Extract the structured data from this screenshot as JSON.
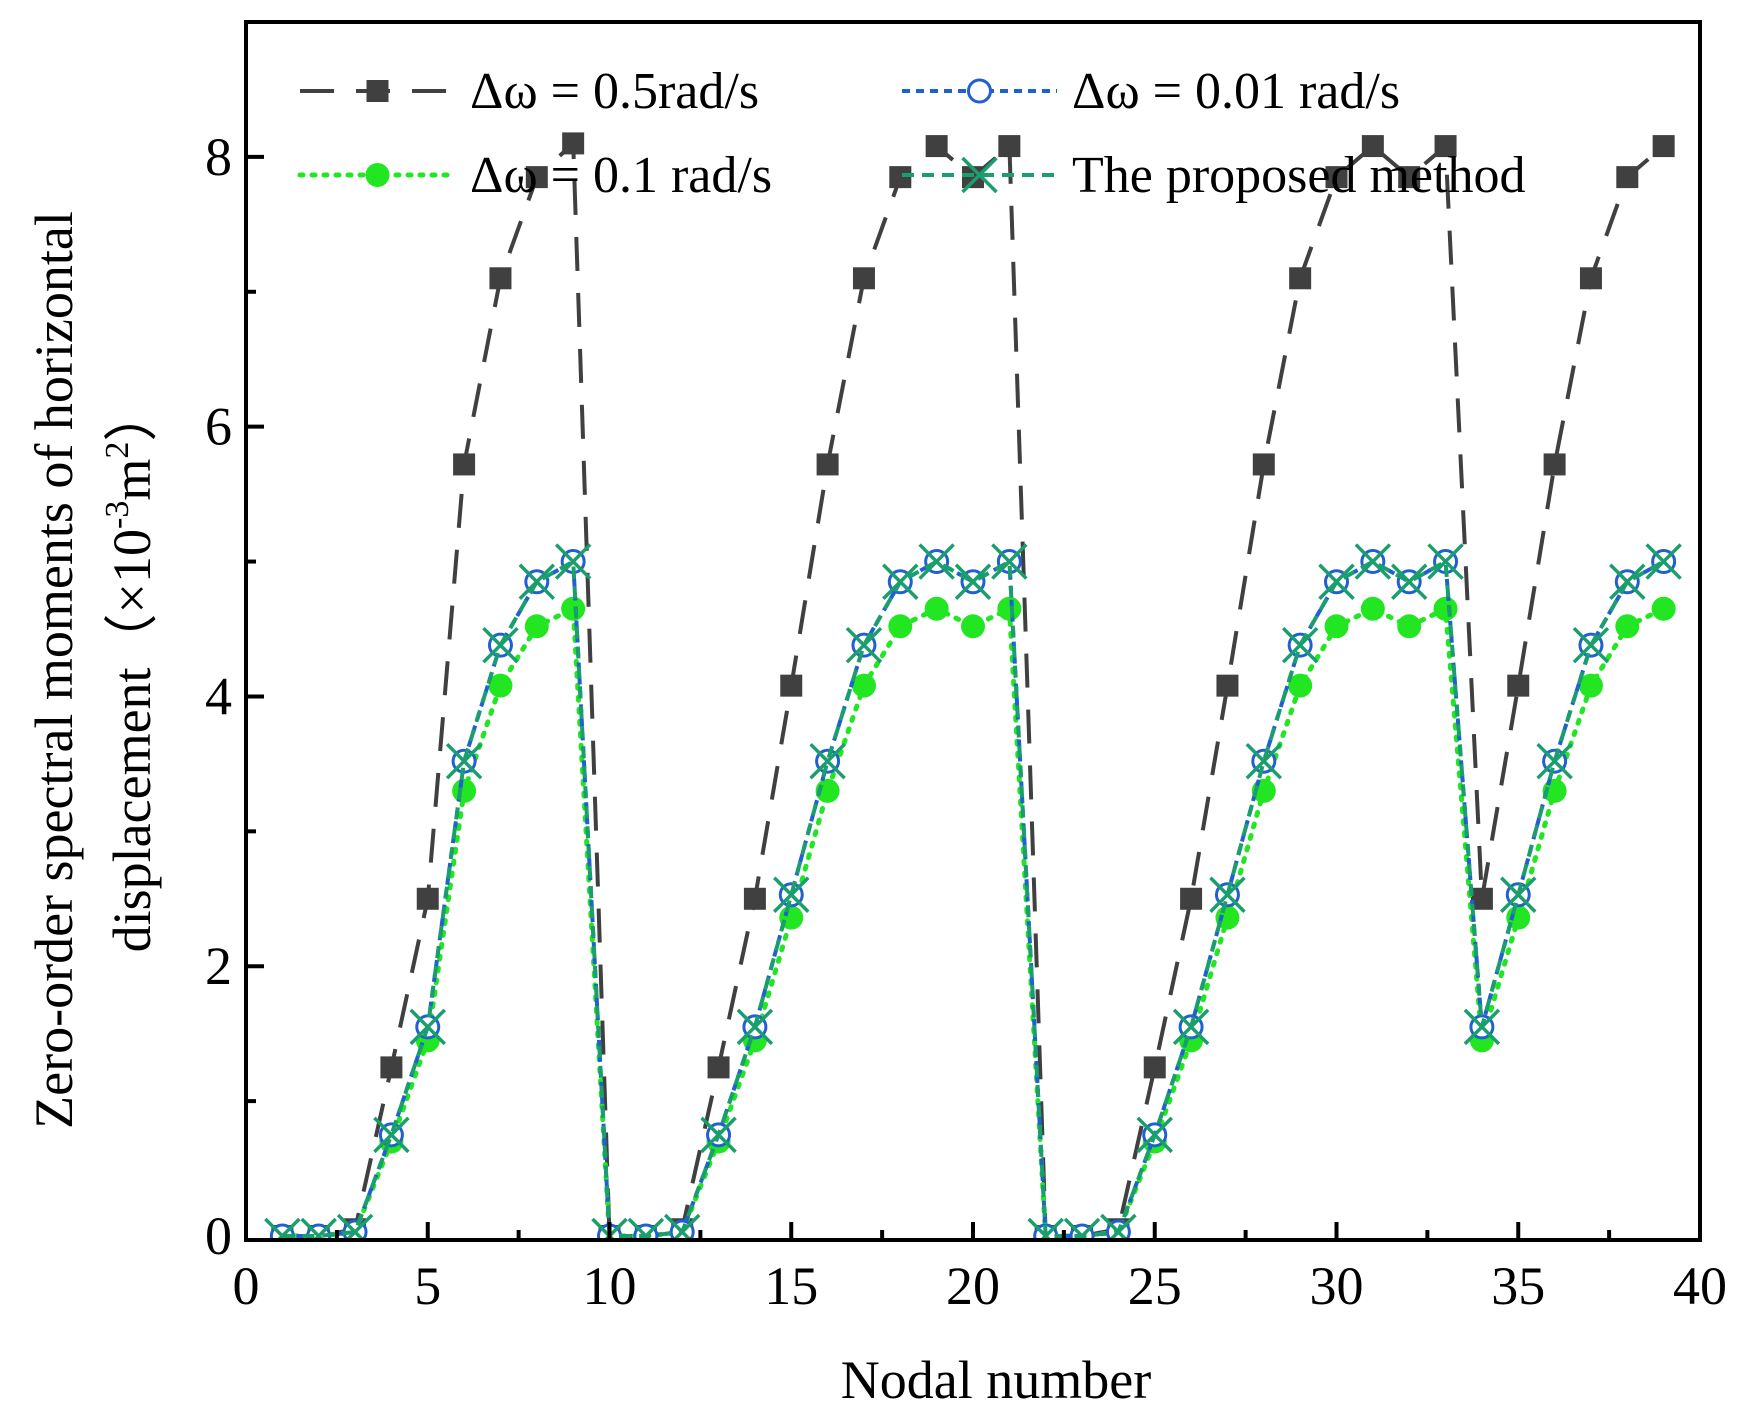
{
  "chart_data": {
    "type": "line",
    "title": "",
    "xlabel": "Nodal number",
    "ylabel_line1": "Zero-order spectral moments of horizontal",
    "ylabel_line2_prefix": "displacement（×10",
    "ylabel_exp1": "-3",
    "ylabel_mid": "m",
    "ylabel_exp2": "2",
    "ylabel_suffix": "）",
    "xlim": [
      0,
      40
    ],
    "ylim": [
      0,
      9
    ],
    "xticks": [
      0,
      5,
      10,
      15,
      20,
      25,
      30,
      35,
      40
    ],
    "xtick_labels": [
      "0",
      "5",
      "10",
      "15",
      "20",
      "25",
      "30",
      "35",
      "40"
    ],
    "yticks": [
      0,
      2,
      4,
      6,
      8
    ],
    "ytick_labels": [
      "0",
      "2",
      "4",
      "6",
      "8"
    ],
    "grid": false,
    "legend_position": "top",
    "x": [
      1,
      2,
      3,
      4,
      5,
      6,
      7,
      8,
      9,
      10,
      11,
      12,
      13,
      14,
      15,
      16,
      17,
      18,
      19,
      20,
      21,
      22,
      23,
      24,
      25,
      26,
      27,
      28,
      29,
      30,
      31,
      32,
      33,
      34,
      35,
      36,
      37,
      38,
      39
    ],
    "series": [
      {
        "name": "Δω = 0.5rad/s",
        "color": "#404040",
        "marker": "square",
        "values": [
          0.0,
          0.0,
          0.05,
          1.25,
          2.5,
          5.72,
          7.1,
          7.85,
          8.1,
          0.0,
          0.0,
          0.05,
          1.25,
          2.5,
          4.08,
          5.72,
          7.1,
          7.85,
          8.08,
          7.85,
          8.08,
          0.0,
          0.0,
          0.05,
          1.25,
          2.5,
          4.08,
          5.72,
          7.1,
          7.85,
          8.08,
          7.85,
          8.08,
          2.5,
          4.08,
          5.72,
          7.1,
          7.85,
          8.08
        ]
      },
      {
        "name": "Δω = 0.01 rad/s",
        "color": "#2060d0",
        "marker": "open-circle",
        "values": [
          0.0,
          0.0,
          0.03,
          0.75,
          1.55,
          3.52,
          4.38,
          4.85,
          5.0,
          0.0,
          0.0,
          0.03,
          0.75,
          1.55,
          2.53,
          3.52,
          4.38,
          4.85,
          5.0,
          4.85,
          5.0,
          0.0,
          0.0,
          0.03,
          0.75,
          1.55,
          2.53,
          3.52,
          4.38,
          4.85,
          5.0,
          4.85,
          5.0,
          1.55,
          2.53,
          3.52,
          4.38,
          4.85,
          5.0
        ]
      },
      {
        "name": "Δω = 0.1 rad/s",
        "color": "#22e622",
        "marker": "filled-circle",
        "values": [
          0.0,
          0.0,
          0.03,
          0.7,
          1.45,
          3.3,
          4.08,
          4.52,
          4.65,
          0.0,
          0.0,
          0.03,
          0.7,
          1.45,
          2.36,
          3.3,
          4.08,
          4.52,
          4.65,
          4.52,
          4.65,
          0.0,
          0.0,
          0.03,
          0.7,
          1.45,
          2.36,
          3.3,
          4.08,
          4.52,
          4.65,
          4.52,
          4.65,
          1.45,
          2.36,
          3.3,
          4.08,
          4.52,
          4.65
        ]
      },
      {
        "name": "The proposed method",
        "color": "#1a9e6e",
        "marker": "x",
        "values": [
          0.0,
          0.0,
          0.03,
          0.75,
          1.55,
          3.52,
          4.38,
          4.85,
          5.0,
          0.0,
          0.0,
          0.03,
          0.75,
          1.55,
          2.53,
          3.52,
          4.38,
          4.85,
          5.0,
          4.85,
          5.0,
          0.0,
          0.0,
          0.03,
          0.75,
          1.55,
          2.53,
          3.52,
          4.38,
          4.85,
          5.0,
          4.85,
          5.0,
          1.55,
          2.53,
          3.52,
          4.38,
          4.85,
          5.0
        ]
      }
    ]
  }
}
